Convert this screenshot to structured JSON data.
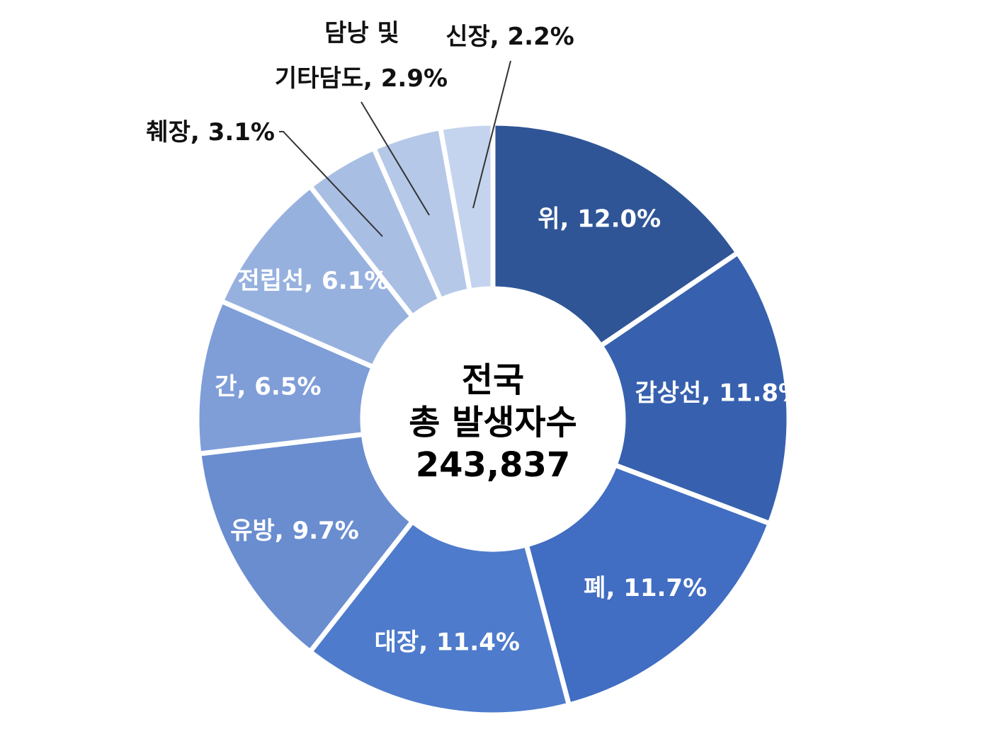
{
  "chart_data": {
    "type": "pie",
    "variant": "donut",
    "center_label": {
      "line1": "전국",
      "line2": "총 발생자수",
      "line3": "243,837"
    },
    "slices": [
      {
        "name": "위",
        "value": 12.0,
        "label": "위, 12.0%",
        "color": "#2F5597",
        "label_inside": true
      },
      {
        "name": "갑상선",
        "value": 11.8,
        "label": "갑상선, 11.8%",
        "color": "#3761AE",
        "label_inside": true
      },
      {
        "name": "폐",
        "value": 11.7,
        "label": "폐, 11.7%",
        "color": "#416DC2",
        "label_inside": true
      },
      {
        "name": "대장",
        "value": 11.4,
        "label": "대장, 11.4%",
        "color": "#4E7BCC",
        "label_inside": true
      },
      {
        "name": "유방",
        "value": 9.7,
        "label": "유방, 9.7%",
        "color": "#6A8DD0",
        "label_inside": true
      },
      {
        "name": "간",
        "value": 6.5,
        "label": "간, 6.5%",
        "color": "#7F9ED8",
        "label_inside": true
      },
      {
        "name": "전립선",
        "value": 6.1,
        "label": "전립선, 6.1%",
        "color": "#97B1DF",
        "label_inside": true
      },
      {
        "name": "췌장",
        "value": 3.1,
        "label": "췌장, 3.1%",
        "color": "#A9BEE3",
        "label_inside": false
      },
      {
        "name": "담낭 및 기타담도",
        "value": 2.9,
        "label_line1": "담낭 및",
        "label_line2": "기타담도, 2.9%",
        "color": "#B5C8E8",
        "label_inside": false
      },
      {
        "name": "신장",
        "value": 2.2,
        "label": "신장, 2.2%",
        "color": "#C5D4EE",
        "label_inside": false
      }
    ]
  }
}
